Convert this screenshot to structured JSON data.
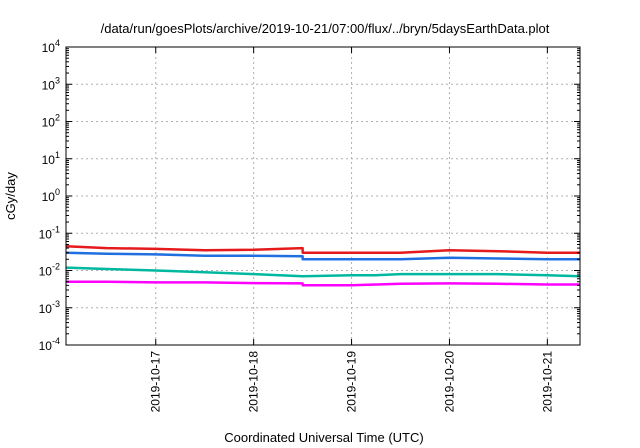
{
  "chart_data": {
    "type": "line",
    "title": "/data/run/goesPlots/archive/2019-10-21/07:00/flux/../bryn/5daysEarthData.plot",
    "xlabel": "Coordinated Universal Time (UTC)",
    "ylabel": "cGy/day",
    "yscale": "log",
    "ylim": [
      0.0001,
      10000
    ],
    "y_tick_labels": [
      {
        "base": "10",
        "exp": "-4"
      },
      {
        "base": "10",
        "exp": "-3"
      },
      {
        "base": "10",
        "exp": "-2"
      },
      {
        "base": "10",
        "exp": "-1"
      },
      {
        "base": "10",
        "exp": "0"
      },
      {
        "base": "10",
        "exp": "1"
      },
      {
        "base": "10",
        "exp": "2"
      },
      {
        "base": "10",
        "exp": "3"
      },
      {
        "base": "10",
        "exp": "4"
      }
    ],
    "xlim": [
      "2019-10-16T02:00",
      "2019-10-21T08:00"
    ],
    "x_ticks": [
      "2019-10-17",
      "2019-10-18",
      "2019-10-19",
      "2019-10-20",
      "2019-10-21"
    ],
    "grid": true,
    "legend": "none",
    "series": [
      {
        "color": "#e41a1c",
        "x": [
          "2019-10-16T02:00",
          "2019-10-16T12:00",
          "2019-10-17T00:00",
          "2019-10-17T12:00",
          "2019-10-18T00:00",
          "2019-10-18T12:00",
          "2019-10-18T12:01",
          "2019-10-19T00:00",
          "2019-10-19T06:00",
          "2019-10-19T12:00",
          "2019-10-20T00:00",
          "2019-10-20T12:00",
          "2019-10-21T00:00",
          "2019-10-21T08:00"
        ],
        "y": [
          0.045,
          0.04,
          0.038,
          0.035,
          0.036,
          0.04,
          0.03,
          0.03,
          0.03,
          0.03,
          0.035,
          0.033,
          0.03,
          0.03
        ]
      },
      {
        "color": "#00b8a0",
        "x": [
          "2019-10-16T02:00",
          "2019-10-16T12:00",
          "2019-10-17T00:00",
          "2019-10-17T12:00",
          "2019-10-18T00:00",
          "2019-10-18T12:00",
          "2019-10-18T12:01",
          "2019-10-19T00:00",
          "2019-10-19T06:00",
          "2019-10-19T12:00",
          "2019-10-20T00:00",
          "2019-10-20T12:00",
          "2019-10-21T00:00",
          "2019-10-21T08:00"
        ],
        "y": [
          0.012,
          0.011,
          0.01,
          0.009,
          0.008,
          0.007,
          0.007,
          0.0075,
          0.0075,
          0.008,
          0.008,
          0.008,
          0.0075,
          0.007
        ]
      },
      {
        "color": "#1f6fe0",
        "x": [
          "2019-10-16T02:00",
          "2019-10-16T12:00",
          "2019-10-17T00:00",
          "2019-10-17T12:00",
          "2019-10-18T00:00",
          "2019-10-18T12:00",
          "2019-10-18T12:01",
          "2019-10-19T00:00",
          "2019-10-19T06:00",
          "2019-10-19T12:00",
          "2019-10-20T00:00",
          "2019-10-20T12:00",
          "2019-10-21T00:00",
          "2019-10-21T08:00"
        ],
        "y": [
          0.03,
          0.028,
          0.027,
          0.025,
          0.025,
          0.024,
          0.02,
          0.02,
          0.02,
          0.02,
          0.022,
          0.021,
          0.02,
          0.02
        ]
      },
      {
        "color": "#ff00ff",
        "x": [
          "2019-10-16T02:00",
          "2019-10-16T12:00",
          "2019-10-17T00:00",
          "2019-10-17T12:00",
          "2019-10-18T00:00",
          "2019-10-18T12:00",
          "2019-10-18T12:01",
          "2019-10-19T00:00",
          "2019-10-19T06:00",
          "2019-10-19T12:00",
          "2019-10-20T00:00",
          "2019-10-20T12:00",
          "2019-10-21T00:00",
          "2019-10-21T08:00"
        ],
        "y": [
          0.005,
          0.005,
          0.0048,
          0.0048,
          0.0046,
          0.0045,
          0.004,
          0.004,
          0.0042,
          0.0044,
          0.0045,
          0.0044,
          0.0042,
          0.0042
        ]
      }
    ]
  }
}
